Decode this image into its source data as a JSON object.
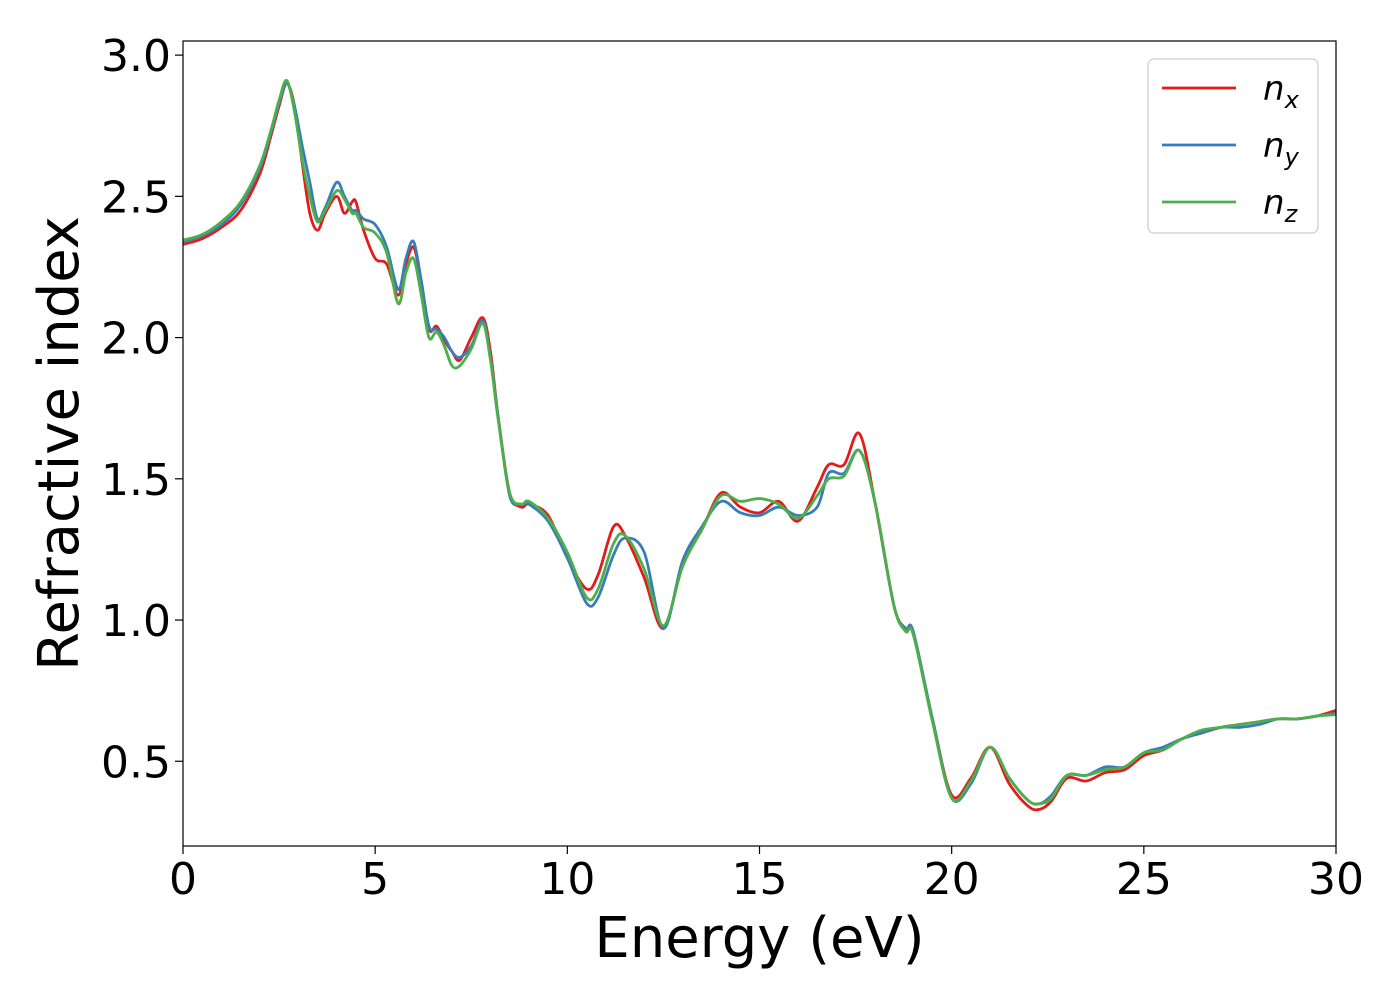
{
  "chart_data": {
    "type": "line",
    "title": "",
    "xlabel": "Energy (eV)",
    "ylabel": "Refractive index",
    "xlim": [
      0,
      30
    ],
    "ylim": [
      0.2,
      3.05
    ],
    "xticks": [
      0,
      5,
      10,
      15,
      20,
      25,
      30
    ],
    "xtick_labels": [
      "0",
      "5",
      "10",
      "15",
      "20",
      "25",
      "30"
    ],
    "yticks": [
      0.5,
      1.0,
      1.5,
      2.0,
      2.5,
      3.0
    ],
    "ytick_labels": [
      "0.5",
      "1.0",
      "1.5",
      "2.0",
      "2.5",
      "3.0"
    ],
    "grid": false,
    "legend_position": "top-right",
    "series": [
      {
        "name": "n",
        "subscript": "x",
        "color": "#e41a1c",
        "x": [
          0,
          0.5,
          1,
          1.5,
          2,
          2.3,
          2.5,
          2.7,
          2.9,
          3.1,
          3.3,
          3.5,
          3.7,
          4,
          4.2,
          4.4,
          4.5,
          4.7,
          5,
          5.3,
          5.6,
          5.8,
          6,
          6.2,
          6.4,
          6.6,
          6.8,
          7,
          7.2,
          7.5,
          7.8,
          8,
          8.2,
          8.5,
          8.8,
          9,
          9.5,
          10,
          10.5,
          10.8,
          11.2,
          11.5,
          12,
          12.5,
          13,
          13.5,
          14,
          14.5,
          15,
          15.5,
          16,
          16.5,
          16.8,
          17.2,
          17.6,
          18,
          18.5,
          18.8,
          19,
          19.5,
          20,
          20.5,
          21,
          21.5,
          22,
          22.3,
          22.6,
          23,
          23.5,
          24,
          24.5,
          25,
          25.5,
          26,
          26.5,
          27,
          27.5,
          28,
          28.5,
          29,
          29.5,
          30
        ],
        "y": [
          2.33,
          2.35,
          2.39,
          2.45,
          2.58,
          2.72,
          2.82,
          2.9,
          2.82,
          2.62,
          2.44,
          2.38,
          2.44,
          2.5,
          2.44,
          2.48,
          2.48,
          2.38,
          2.28,
          2.26,
          2.15,
          2.26,
          2.32,
          2.2,
          2.03,
          2.04,
          1.99,
          1.95,
          1.92,
          2.0,
          2.07,
          1.95,
          1.72,
          1.45,
          1.4,
          1.41,
          1.37,
          1.22,
          1.11,
          1.16,
          1.33,
          1.3,
          1.15,
          0.97,
          1.2,
          1.32,
          1.45,
          1.4,
          1.38,
          1.42,
          1.35,
          1.47,
          1.55,
          1.55,
          1.66,
          1.42,
          1.05,
          0.97,
          0.95,
          0.65,
          0.38,
          0.44,
          0.55,
          0.42,
          0.34,
          0.33,
          0.36,
          0.44,
          0.43,
          0.46,
          0.47,
          0.52,
          0.54,
          0.58,
          0.6,
          0.62,
          0.63,
          0.64,
          0.65,
          0.65,
          0.66,
          0.68
        ]
      },
      {
        "name": "n",
        "subscript": "y",
        "color": "#377eb8",
        "x": [
          0,
          0.5,
          1,
          1.5,
          2,
          2.3,
          2.5,
          2.7,
          2.9,
          3.1,
          3.3,
          3.5,
          3.7,
          4,
          4.2,
          4.4,
          4.5,
          4.7,
          5,
          5.3,
          5.6,
          5.8,
          6,
          6.2,
          6.4,
          6.6,
          6.8,
          7,
          7.2,
          7.5,
          7.8,
          8,
          8.2,
          8.5,
          8.8,
          9,
          9.5,
          10,
          10.5,
          10.8,
          11.2,
          11.5,
          12,
          12.5,
          13,
          13.5,
          14,
          14.5,
          15,
          15.5,
          16,
          16.5,
          16.8,
          17.2,
          17.6,
          18,
          18.5,
          18.8,
          19,
          19.5,
          20,
          20.5,
          21,
          21.5,
          22,
          22.3,
          22.6,
          23,
          23.5,
          24,
          24.5,
          25,
          25.5,
          26,
          26.5,
          27,
          27.5,
          28,
          28.5,
          29,
          29.5,
          30
        ],
        "y": [
          2.34,
          2.36,
          2.4,
          2.47,
          2.6,
          2.73,
          2.83,
          2.9,
          2.82,
          2.68,
          2.55,
          2.42,
          2.46,
          2.55,
          2.5,
          2.45,
          2.45,
          2.42,
          2.4,
          2.32,
          2.17,
          2.28,
          2.34,
          2.2,
          2.04,
          2.03,
          2.0,
          1.95,
          1.93,
          1.97,
          2.06,
          1.93,
          1.72,
          1.44,
          1.41,
          1.41,
          1.35,
          1.22,
          1.06,
          1.08,
          1.23,
          1.29,
          1.24,
          0.97,
          1.21,
          1.33,
          1.42,
          1.38,
          1.37,
          1.4,
          1.37,
          1.4,
          1.52,
          1.52,
          1.6,
          1.42,
          1.05,
          0.97,
          0.96,
          0.65,
          0.37,
          0.42,
          0.55,
          0.44,
          0.36,
          0.35,
          0.38,
          0.45,
          0.45,
          0.48,
          0.48,
          0.53,
          0.55,
          0.58,
          0.6,
          0.62,
          0.62,
          0.63,
          0.65,
          0.65,
          0.66,
          0.67
        ]
      },
      {
        "name": "n",
        "subscript": "z",
        "color": "#4daf4a",
        "x": [
          0,
          0.5,
          1,
          1.5,
          2,
          2.3,
          2.5,
          2.7,
          2.9,
          3.1,
          3.3,
          3.5,
          3.7,
          4,
          4.2,
          4.4,
          4.5,
          4.7,
          5,
          5.3,
          5.6,
          5.8,
          6,
          6.2,
          6.4,
          6.6,
          6.8,
          7,
          7.2,
          7.5,
          7.8,
          8,
          8.2,
          8.5,
          8.8,
          9,
          9.5,
          10,
          10.5,
          10.8,
          11.2,
          11.5,
          12,
          12.5,
          13,
          13.5,
          14,
          14.5,
          15,
          15.5,
          16,
          16.5,
          16.8,
          17.2,
          17.6,
          18,
          18.5,
          18.8,
          19,
          19.5,
          20,
          20.5,
          21,
          21.5,
          22,
          22.3,
          22.6,
          23,
          23.5,
          24,
          24.5,
          25,
          25.5,
          26,
          26.5,
          27,
          27.5,
          28,
          28.5,
          29,
          29.5,
          30
        ],
        "y": [
          2.345,
          2.365,
          2.41,
          2.48,
          2.61,
          2.74,
          2.84,
          2.91,
          2.8,
          2.63,
          2.5,
          2.41,
          2.45,
          2.52,
          2.49,
          2.44,
          2.44,
          2.39,
          2.37,
          2.3,
          2.12,
          2.23,
          2.28,
          2.15,
          2.0,
          2.02,
          1.97,
          1.9,
          1.9,
          1.96,
          2.05,
          1.92,
          1.71,
          1.45,
          1.41,
          1.42,
          1.36,
          1.24,
          1.08,
          1.11,
          1.27,
          1.3,
          1.18,
          0.98,
          1.19,
          1.32,
          1.44,
          1.42,
          1.43,
          1.41,
          1.36,
          1.44,
          1.5,
          1.51,
          1.6,
          1.42,
          1.05,
          0.96,
          0.95,
          0.64,
          0.37,
          0.43,
          0.55,
          0.44,
          0.36,
          0.35,
          0.37,
          0.45,
          0.45,
          0.47,
          0.48,
          0.53,
          0.54,
          0.58,
          0.61,
          0.62,
          0.63,
          0.64,
          0.65,
          0.65,
          0.66,
          0.665
        ]
      }
    ]
  }
}
